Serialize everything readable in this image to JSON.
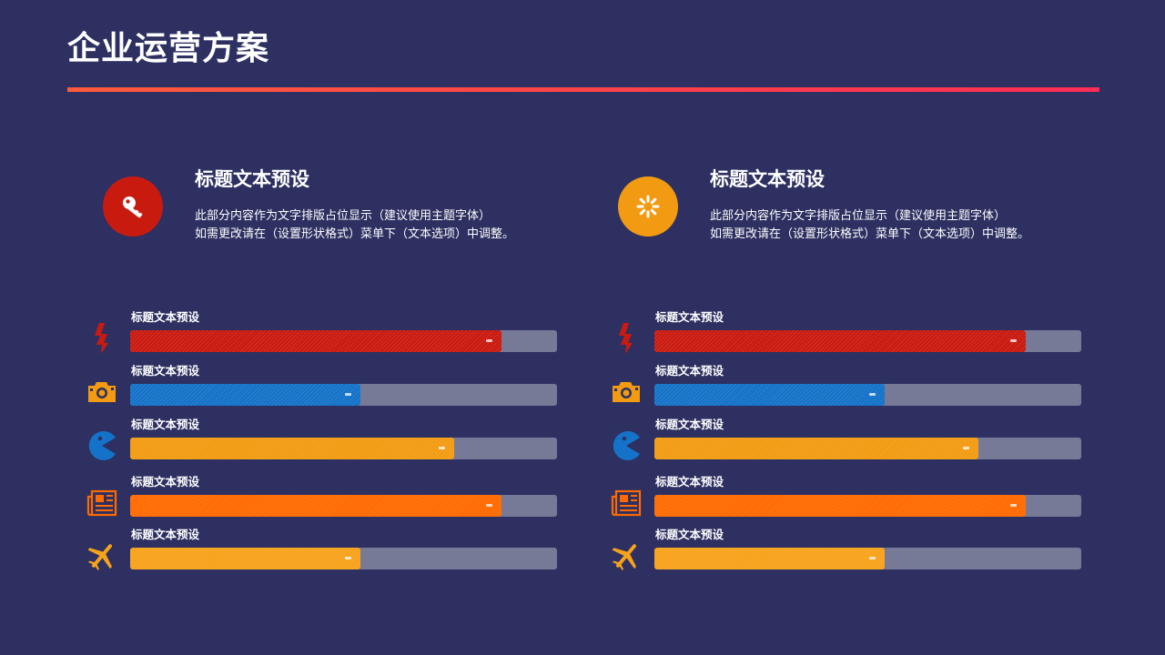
{
  "page": {
    "title": "企业运营方案"
  },
  "colors": {
    "background": "#2d3061",
    "accent_line": "#ff3d4a",
    "track": "#777a96",
    "red": "#c91a10",
    "blue": "#1472c8",
    "orange": "#f29b12",
    "deep_orange": "#ff6a00",
    "amber": "#f7a21b"
  },
  "intros": [
    {
      "icon": "key-icon",
      "icon_color": "#c91a10",
      "heading": "标题文本预设",
      "body_line1": "此部分内容作为文字排版占位显示（建议使用主题字体）",
      "body_line2": "如需更改请在（设置形状格式）菜单下（文本选项）中调整。"
    },
    {
      "icon": "loading-spinner-icon",
      "icon_color": "#f29b12",
      "heading": "标题文本预设",
      "body_line1": "此部分内容作为文字排版占位显示（建议使用主题字体）",
      "body_line2": "如需更改请在（设置形状格式）菜单下（文本选项）中调整。"
    }
  ],
  "bar_groups": [
    {
      "bars": [
        {
          "icon": "flash-icon",
          "label": "标题文本预设",
          "value": 0.87,
          "color": "#c91a10"
        },
        {
          "icon": "camera-icon",
          "label": "标题文本预设",
          "value": 0.54,
          "color": "#1472c8"
        },
        {
          "icon": "pacman-icon",
          "label": "标题文本预设",
          "value": 0.76,
          "color": "#f29b12"
        },
        {
          "icon": "newspaper-icon",
          "label": "标题文本预设",
          "value": 0.87,
          "color": "#ff6a00"
        },
        {
          "icon": "airplane-icon",
          "label": "标题文本预设",
          "value": 0.54,
          "color": "#f7a21b"
        }
      ]
    },
    {
      "bars": [
        {
          "icon": "flash-icon",
          "label": "标题文本预设",
          "value": 0.87,
          "color": "#c91a10"
        },
        {
          "icon": "camera-icon",
          "label": "标题文本预设",
          "value": 0.54,
          "color": "#1472c8"
        },
        {
          "icon": "pacman-icon",
          "label": "标题文本预设",
          "value": 0.76,
          "color": "#f29b12"
        },
        {
          "icon": "newspaper-icon",
          "label": "标题文本预设",
          "value": 0.87,
          "color": "#ff6a00"
        },
        {
          "icon": "airplane-icon",
          "label": "标题文本预设",
          "value": 0.54,
          "color": "#f7a21b"
        }
      ]
    }
  ]
}
